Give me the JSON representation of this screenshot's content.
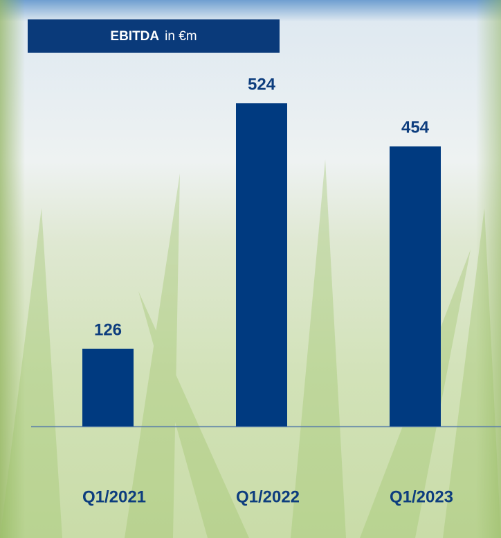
{
  "chart_data": {
    "type": "bar",
    "title": "EBITDA",
    "subtitle": "in €m",
    "categories": [
      "Q1/2021",
      "Q1/2022",
      "Q1/2023"
    ],
    "values": [
      126,
      524,
      454
    ],
    "color": "#003a80"
  }
}
